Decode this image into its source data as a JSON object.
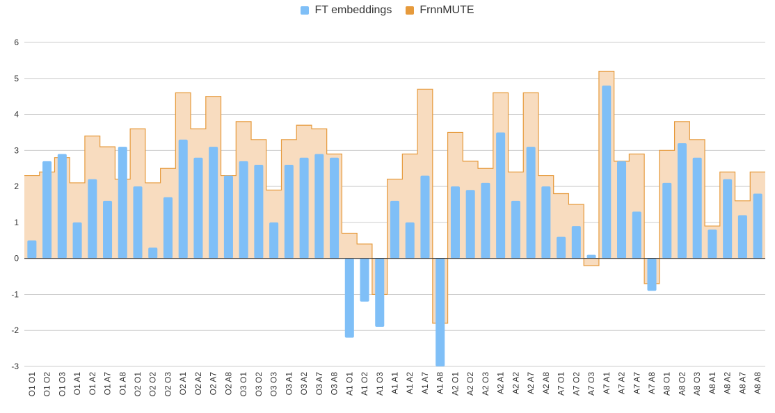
{
  "chart_data": {
    "type": "bar",
    "categories": [
      "O1 O1",
      "O1 O2",
      "O1 O3",
      "O1 A1",
      "O1 A2",
      "O1 A7",
      "O1 A8",
      "O2 O1",
      "O2 O2",
      "O2 O3",
      "O2 A1",
      "O2 A2",
      "O2 A7",
      "O2 A8",
      "O3 O1",
      "O3 O2",
      "O3 O3",
      "O3 A1",
      "O3 A2",
      "O3 A7",
      "O3 A8",
      "A1 O1",
      "A1 O2",
      "A1 O3",
      "A1 A1",
      "A1 A2",
      "A1 A7",
      "A1 A8",
      "A2 O1",
      "A2 O2",
      "A2 O3",
      "A2 A1",
      "A2 A2",
      "A2 A7",
      "A2 A8",
      "A7 O1",
      "A7 O2",
      "A7 O3",
      "A7 A1",
      "A7 A2",
      "A7 A7",
      "A7 A8",
      "A8 O1",
      "A8 O2",
      "A8 O3",
      "A8 A1",
      "A8 A2",
      "A8 A7",
      "A8 A8"
    ],
    "series": [
      {
        "name": "FT embeddings",
        "type": "bar",
        "color": "#7fbff7",
        "values": [
          0.5,
          2.7,
          2.9,
          1.0,
          2.2,
          1.6,
          3.1,
          2.0,
          0.3,
          1.7,
          3.3,
          2.8,
          3.1,
          2.3,
          2.7,
          2.6,
          1.0,
          2.6,
          2.8,
          2.9,
          2.8,
          -2.2,
          -1.2,
          -1.9,
          1.6,
          1.0,
          2.3,
          -3.0,
          2.0,
          1.9,
          2.1,
          3.5,
          1.6,
          3.1,
          2.0,
          0.6,
          0.9,
          0.1,
          4.8,
          2.7,
          1.3,
          -0.9,
          2.1,
          3.2,
          2.8,
          0.8,
          2.2,
          1.2,
          1.8
        ]
      },
      {
        "name": "FrnnMUTE",
        "type": "stepped-area",
        "color": "#e69a3c",
        "fill": "#f8dcbf",
        "values": [
          2.3,
          2.4,
          2.8,
          2.1,
          3.4,
          3.1,
          2.2,
          3.6,
          2.1,
          2.5,
          4.6,
          3.6,
          4.5,
          2.3,
          3.8,
          3.3,
          1.9,
          3.3,
          3.7,
          3.6,
          2.9,
          0.7,
          0.4,
          -1.0,
          2.2,
          2.9,
          4.7,
          -1.8,
          3.5,
          2.7,
          2.5,
          4.6,
          2.4,
          4.6,
          2.3,
          1.8,
          1.5,
          -0.2,
          5.2,
          2.7,
          2.9,
          -0.7,
          3.0,
          3.8,
          3.3,
          0.9,
          2.4,
          1.6,
          2.4
        ]
      }
    ],
    "ylim": [
      -3,
      6
    ],
    "yticks": [
      -3,
      -2,
      -1,
      0,
      1,
      2,
      3,
      4,
      5,
      6
    ],
    "legend_position": "top-center",
    "grid": true
  }
}
